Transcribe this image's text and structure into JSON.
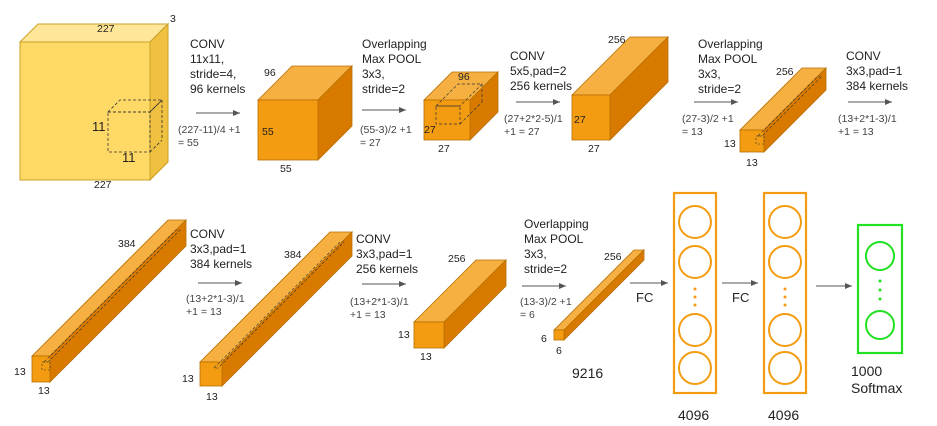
{
  "input": {
    "width": "227",
    "height": "227",
    "depth": "3",
    "kernel_w": "11",
    "kernel_h": "11"
  },
  "stage1": {
    "lines": [
      "CONV",
      "11x11,",
      "stride=4,",
      "96 kernels"
    ],
    "calc": [
      "(227-11)/4 +1",
      "= 55"
    ]
  },
  "vol1": {
    "depth": "96",
    "h": "55",
    "w": "55"
  },
  "stage2": {
    "lines": [
      "Overlapping",
      "Max POOL",
      "3x3,",
      "stride=2"
    ],
    "calc": [
      "(55-3)/2 +1",
      "= 27"
    ]
  },
  "vol2": {
    "depth": "96",
    "h": "27",
    "w": "27"
  },
  "stage3": {
    "lines": [
      "CONV",
      "5x5,pad=2",
      "256 kernels"
    ],
    "calc": [
      "(27+2*2-5)/1",
      "+1 = 27"
    ]
  },
  "vol3": {
    "depth": "256",
    "h": "27",
    "w": "27"
  },
  "stage4": {
    "lines": [
      "Overlapping",
      "Max POOL",
      "3x3,",
      "stride=2"
    ],
    "calc": [
      "(27-3)/2 +1",
      "= 13"
    ]
  },
  "vol4": {
    "depth": "256",
    "h": "13",
    "w": "13"
  },
  "stage5": {
    "lines": [
      "CONV",
      "3x3,pad=1",
      "384 kernels"
    ],
    "calc": [
      "(13+2*1-3)/1",
      "+1  = 13"
    ]
  },
  "vol5": {
    "depth": "384",
    "h": "13",
    "w": "13"
  },
  "stage6": {
    "lines": [
      "CONV",
      "3x3,pad=1",
      "384 kernels"
    ],
    "calc": [
      "(13+2*1-3)/1",
      "+1  = 13"
    ]
  },
  "vol6": {
    "depth": "384",
    "h": "13",
    "w": "13"
  },
  "stage7": {
    "lines": [
      "CONV",
      "3x3,pad=1",
      "256 kernels"
    ],
    "calc": [
      "(13+2*1-3)/1",
      "+1  = 13"
    ]
  },
  "vol7": {
    "depth": "256",
    "h": "13",
    "w": "13"
  },
  "stage8": {
    "lines": [
      "Overlapping",
      "Max POOL",
      "3x3,",
      "stride=2"
    ],
    "calc": [
      "(13-3)/2 +1",
      "= 6"
    ]
  },
  "vol8": {
    "depth": "256",
    "h": "6",
    "w": "6"
  },
  "flatten": {
    "size": "9216"
  },
  "fc1": {
    "label": "FC",
    "size": "4096"
  },
  "fc2": {
    "label": "FC",
    "size": "4096"
  },
  "output": {
    "size": "1000",
    "name": "Softmax",
    "ellipsis": "·"
  },
  "colors": {
    "input": "#ffd966",
    "volume": "#f39c12",
    "volume_dark": "#e67e00",
    "fc": "#f39c12",
    "softmax": "#22e022"
  }
}
